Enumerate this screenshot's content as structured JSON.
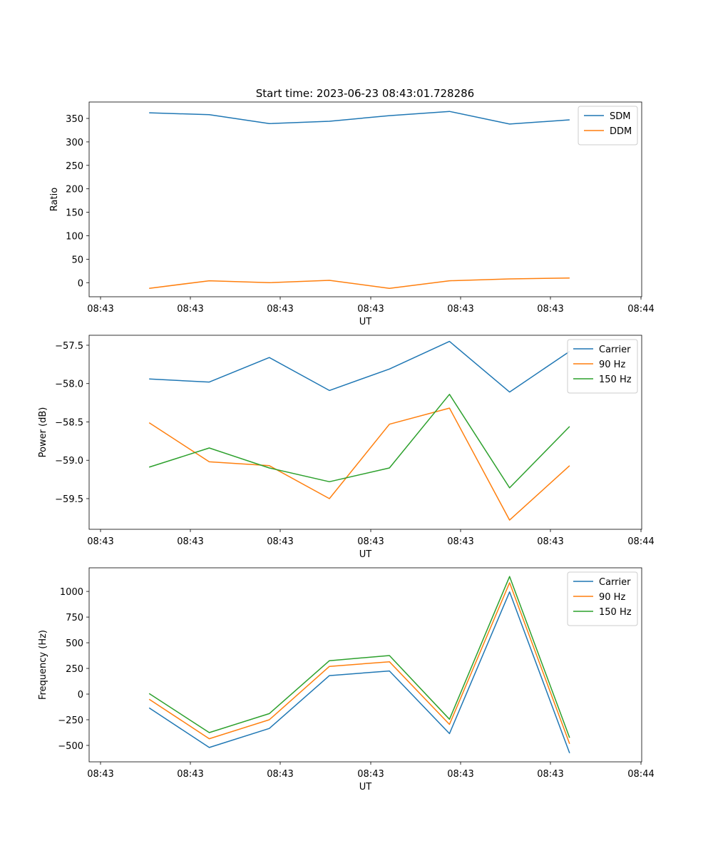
{
  "figure": {
    "title": "Start time: 2023-06-23 08:43:01.728286",
    "x_tick_labels": [
      "08:43",
      "08:43",
      "08:43",
      "08:43",
      "08:43",
      "08:43",
      "08:44"
    ]
  },
  "chart_data": [
    {
      "type": "line",
      "title": "Start time: 2023-06-23 08:43:01.728286",
      "xlabel": "UT",
      "ylabel": "Ratio",
      "x": [
        1,
        2,
        3,
        4,
        5,
        6,
        7,
        8
      ],
      "xlim": [
        0,
        9.2
      ],
      "ylim": [
        -30,
        385
      ],
      "yticks": [
        0,
        50,
        100,
        150,
        200,
        250,
        300,
        350
      ],
      "ytick_labels": [
        "0",
        "50",
        "100",
        "150",
        "200",
        "250",
        "300",
        "350"
      ],
      "grid": false,
      "legend_position": "top-right",
      "series": [
        {
          "name": "SDM",
          "color": "#1f77b4",
          "values": [
            362,
            358,
            339,
            344,
            356,
            365,
            338,
            347
          ]
        },
        {
          "name": "DDM",
          "color": "#ff7f0e",
          "values": [
            -12,
            4,
            0,
            5,
            -12,
            4,
            8,
            10
          ]
        }
      ]
    },
    {
      "type": "line",
      "xlabel": "UT",
      "ylabel": "Power (dB)",
      "x": [
        1,
        2,
        3,
        4,
        5,
        6,
        7,
        8
      ],
      "xlim": [
        0,
        9.2
      ],
      "ylim": [
        -59.9,
        -57.37
      ],
      "yticks": [
        -59.5,
        -59.0,
        -58.5,
        -58.0,
        -57.5
      ],
      "ytick_labels": [
        "−59.5",
        "−59.0",
        "−58.5",
        "−58.0",
        "−57.5"
      ],
      "grid": false,
      "legend_position": "top-right",
      "series": [
        {
          "name": "Carrier",
          "color": "#1f77b4",
          "values": [
            -57.94,
            -57.98,
            -57.66,
            -58.09,
            -57.81,
            -57.45,
            -58.11,
            -57.58
          ]
        },
        {
          "name": "90 Hz",
          "color": "#ff7f0e",
          "values": [
            -58.51,
            -59.02,
            -59.07,
            -59.5,
            -58.53,
            -58.32,
            -59.78,
            -59.07
          ]
        },
        {
          "name": "150 Hz",
          "color": "#2ca02c",
          "values": [
            -59.09,
            -58.84,
            -59.1,
            -59.28,
            -59.1,
            -58.14,
            -59.36,
            -58.56
          ]
        }
      ]
    },
    {
      "type": "line",
      "xlabel": "UT",
      "ylabel": "Frequency (Hz)",
      "x": [
        1,
        2,
        3,
        4,
        5,
        6,
        7,
        8
      ],
      "xlim": [
        0,
        9.2
      ],
      "ylim": [
        -660,
        1230
      ],
      "yticks": [
        -500,
        -250,
        0,
        250,
        500,
        750,
        1000
      ],
      "ytick_labels": [
        "−500",
        "−250",
        "0",
        "250",
        "500",
        "750",
        "1000"
      ],
      "grid": false,
      "legend_position": "top-right",
      "series": [
        {
          "name": "Carrier",
          "color": "#1f77b4",
          "values": [
            -135,
            -520,
            -335,
            180,
            225,
            -385,
            995,
            -575
          ]
        },
        {
          "name": "90 Hz",
          "color": "#ff7f0e",
          "values": [
            -50,
            -435,
            -250,
            270,
            315,
            -295,
            1085,
            -485
          ]
        },
        {
          "name": "150 Hz",
          "color": "#2ca02c",
          "values": [
            5,
            -375,
            -190,
            325,
            375,
            -245,
            1145,
            -425
          ]
        }
      ]
    }
  ]
}
